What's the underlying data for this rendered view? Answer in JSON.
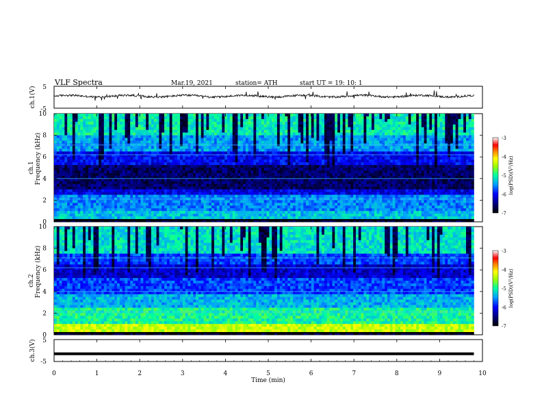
{
  "header": {
    "title": "VLF  Spectra",
    "date": "Mar.19, 2021",
    "station": "station= ATH",
    "start": "start  UT  =    19: 10: 1"
  },
  "chart_data": [
    {
      "type": "line",
      "panel": "ch1-waveform",
      "ylabel": "ch.1(V)",
      "ylim": [
        -5,
        5
      ],
      "yticks": [
        "5",
        "-5"
      ],
      "baseline": 0.5,
      "xlim": [
        0,
        10
      ],
      "x_end": 9.8
    },
    {
      "type": "heatmap",
      "panel": "ch1-spectrogram",
      "ylabel": "Frequency  (kHz)",
      "channel_label": "ch.1",
      "ylim": [
        0,
        10
      ],
      "yticks": [
        "0",
        "2",
        "4",
        "6",
        "8",
        "10"
      ],
      "xlim": [
        0,
        10
      ],
      "x_end": 9.8,
      "colorbar": {
        "label": "log(PSD)(V²/Hz)",
        "range": [
          -7,
          -3
        ],
        "ticks": [
          "-3",
          "-4",
          "-5",
          "-6",
          "-7"
        ]
      }
    },
    {
      "type": "heatmap",
      "panel": "ch2-spectrogram",
      "ylabel": "Frequency  (kHz)",
      "channel_label": "ch.2",
      "ylim": [
        0,
        10
      ],
      "yticks": [
        "0",
        "2",
        "4",
        "6",
        "8",
        "10"
      ],
      "xlim": [
        0,
        10
      ],
      "x_end": 9.8,
      "colorbar": {
        "label": "log(PSD)(V²/Hz)",
        "range": [
          -7,
          -3
        ],
        "ticks": [
          "-3",
          "-4",
          "-5",
          "-6",
          "-7"
        ]
      }
    },
    {
      "type": "line",
      "panel": "ch3-waveform",
      "ylabel": "ch.3(V)",
      "ylim": [
        -5,
        5
      ],
      "yticks": [
        "5",
        "-5"
      ],
      "baseline": -1.5,
      "xlim": [
        0,
        10
      ],
      "x_end": 9.8,
      "xlabel": "Time  (min)",
      "xticks": [
        "0",
        "1",
        "2",
        "3",
        "4",
        "5",
        "6",
        "7",
        "8",
        "9",
        "10"
      ]
    }
  ]
}
